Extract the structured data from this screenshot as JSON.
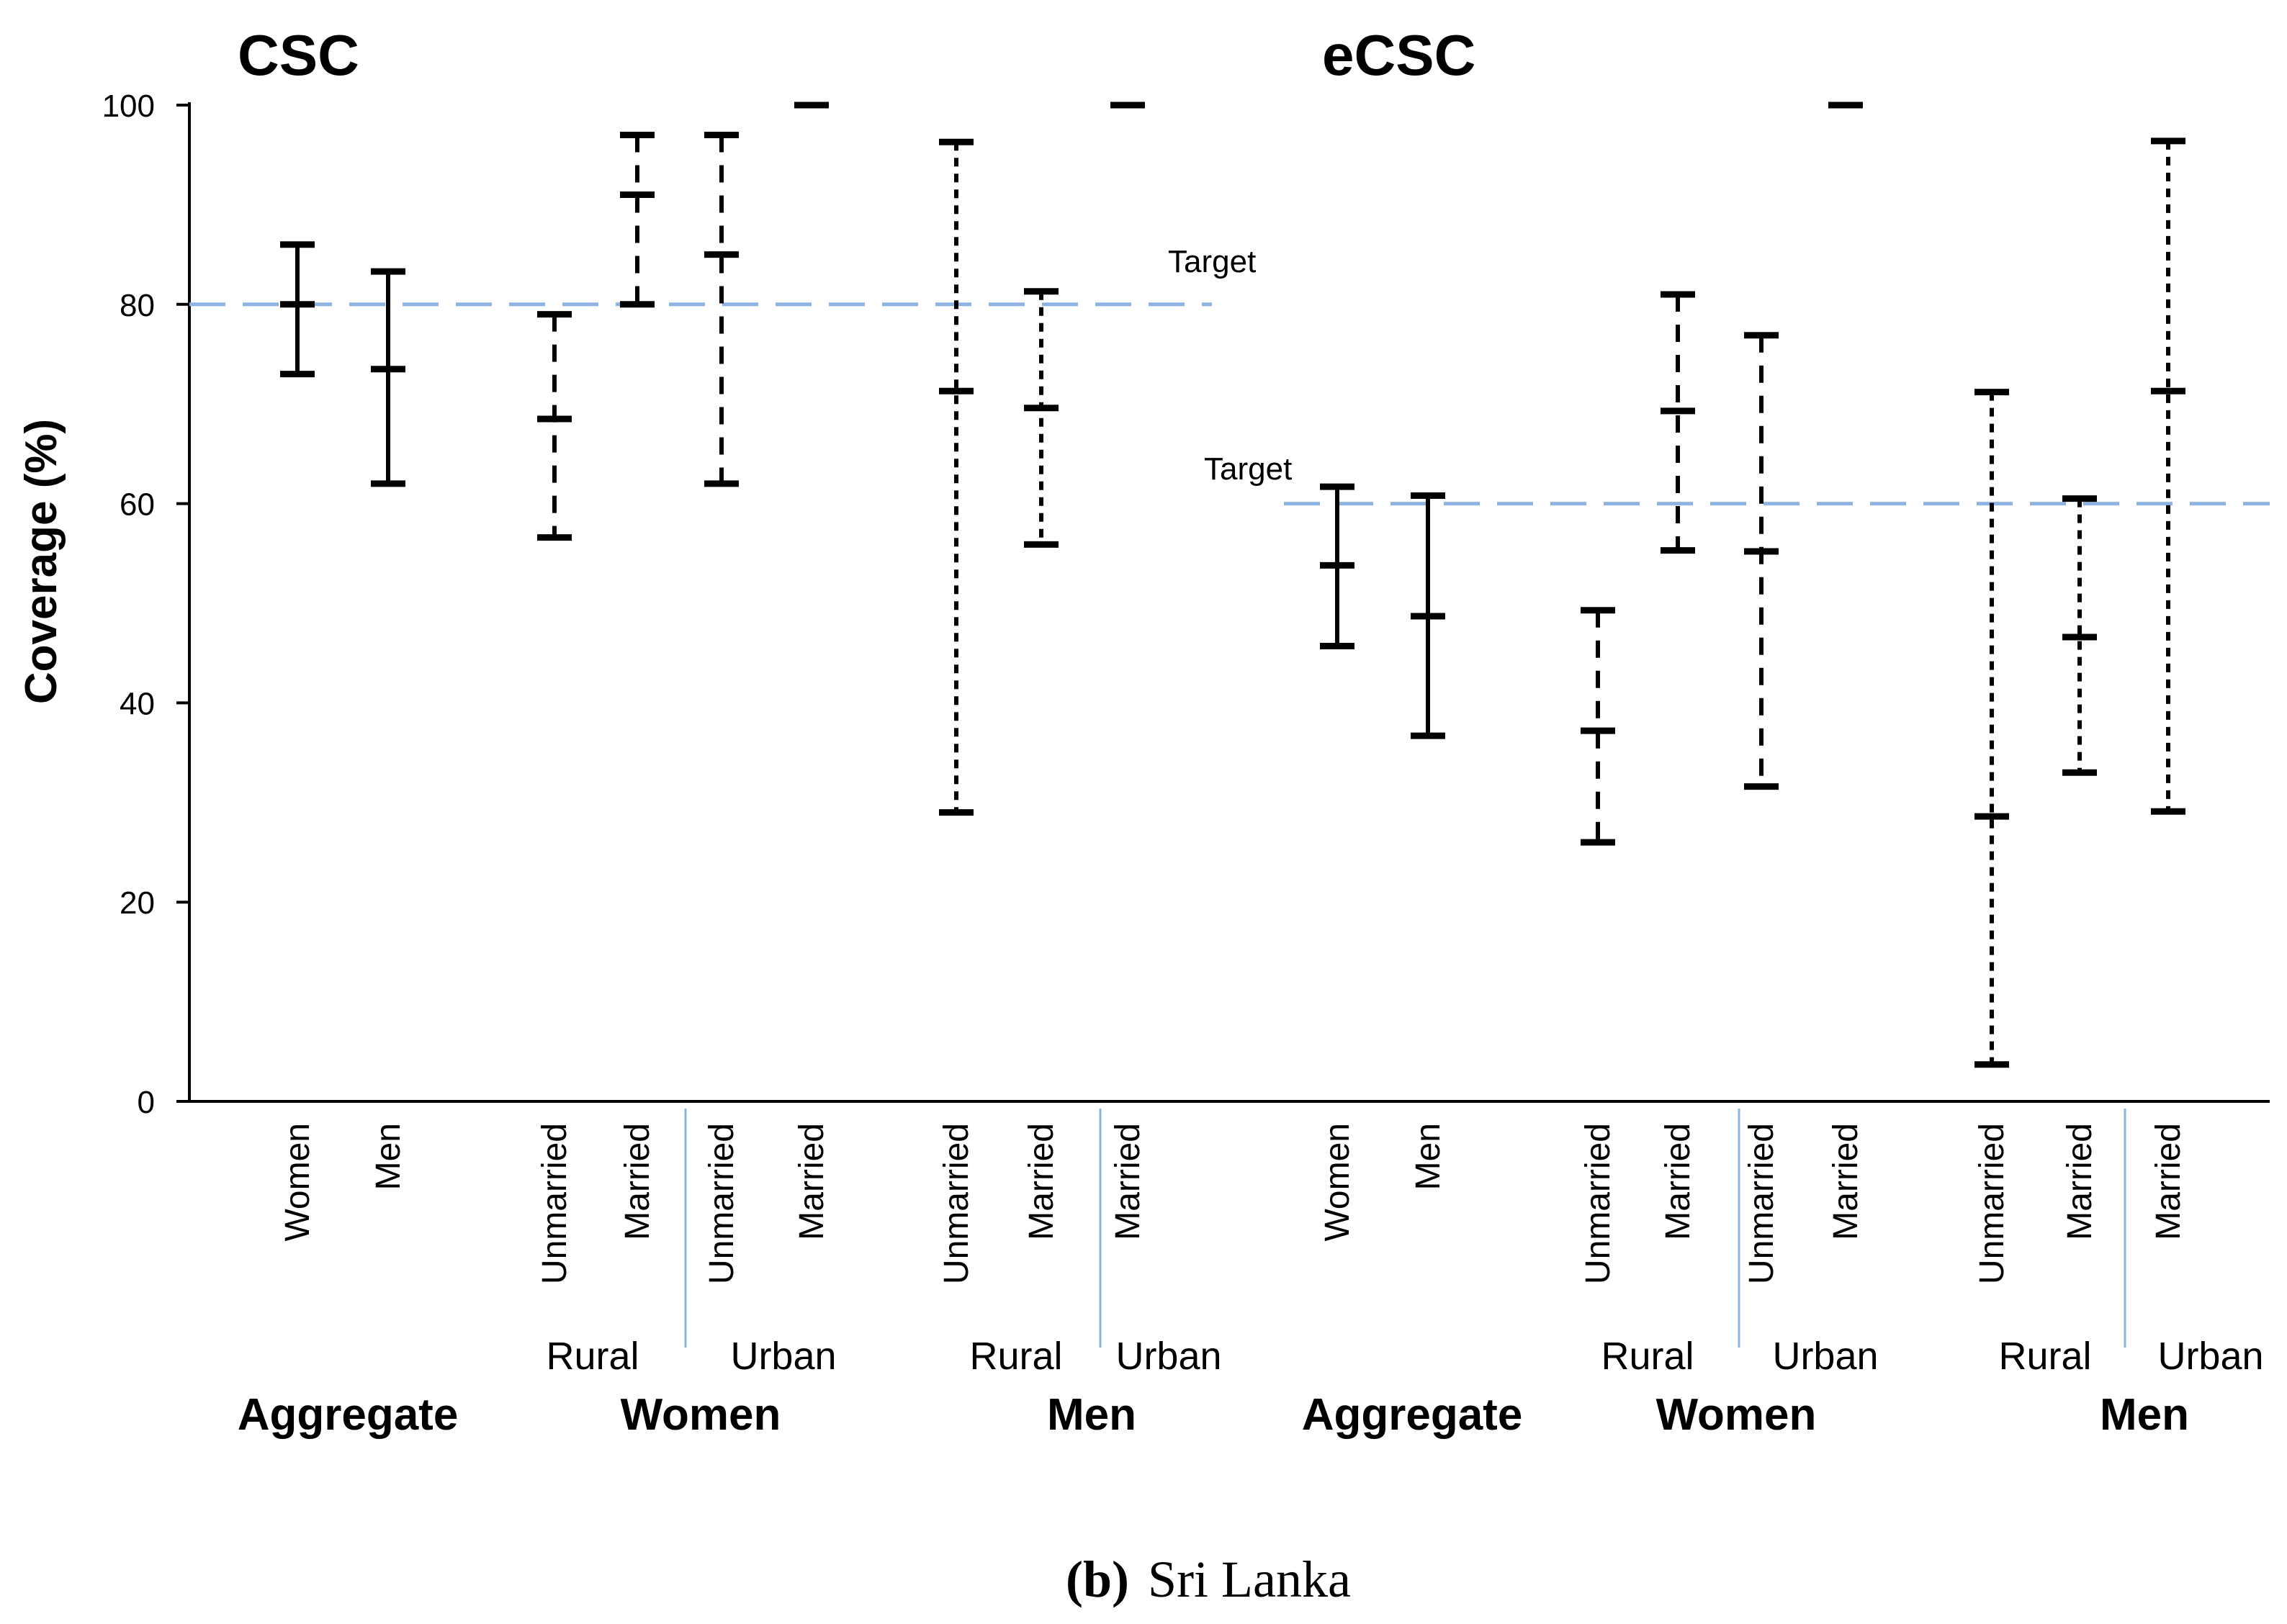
{
  "chart_data": {
    "type": "errorbar",
    "ylabel": "Coverage (%)",
    "ylim": [
      0,
      100
    ],
    "yticks": [
      "0",
      "20",
      "40",
      "60",
      "80",
      "100"
    ],
    "caption_label": "(b)",
    "caption_text": "Sri Lanka",
    "colors": {
      "axis": "#000000",
      "target": "#8db3e2",
      "separator": "#8db3e2",
      "bar": "#000000"
    },
    "panels": [
      {
        "title": "CSC",
        "target": 80,
        "target_label": "Target",
        "group_labels": [
          "Aggregate",
          "Women",
          "Men"
        ],
        "area_labels": [
          "Rural",
          "Urban",
          "Rural",
          "Urban"
        ],
        "series": [
          {
            "name": "Aggregate Women",
            "label": "Women",
            "style": "solid",
            "estimate": 80,
            "lower": 73,
            "upper": 86
          },
          {
            "name": "Aggregate Men",
            "label": "Men",
            "style": "solid",
            "estimate": 73.5,
            "lower": 62,
            "upper": 83.3
          },
          {
            "name": "Women Rural Unmarried",
            "label": "Unmarried",
            "style": "dashed",
            "estimate": 68.5,
            "lower": 56.6,
            "upper": 79
          },
          {
            "name": "Women Rural Married",
            "label": "Married",
            "style": "dashed",
            "estimate": 91,
            "lower": 80,
            "upper": 97
          },
          {
            "name": "Women Urban Unmarried",
            "label": "Unmarried",
            "style": "dashed",
            "estimate": 85,
            "lower": 62,
            "upper": 97
          },
          {
            "name": "Women Urban Married",
            "label": "Married",
            "style": "dashed",
            "estimate": 100,
            "lower": 100,
            "upper": 100
          },
          {
            "name": "Men Rural Unmarried",
            "label": "Unmarried",
            "style": "dotted",
            "estimate": 71.3,
            "lower": 29,
            "upper": 96.3
          },
          {
            "name": "Men Rural Married",
            "label": "Married",
            "style": "dotted",
            "estimate": 69.6,
            "lower": 55.9,
            "upper": 81.3
          },
          {
            "name": "Men Urban Married",
            "label": "Married",
            "style": "dotted",
            "estimate": 100,
            "lower": 100,
            "upper": 100
          }
        ]
      },
      {
        "title": "eCSC",
        "target": 60,
        "target_label": "Target",
        "group_labels": [
          "Aggregate",
          "Women",
          "Men"
        ],
        "area_labels": [
          "Rural",
          "Urban",
          "Rural",
          "Urban"
        ],
        "series": [
          {
            "name": "Aggregate Women",
            "label": "Women",
            "style": "solid",
            "estimate": 53.8,
            "lower": 45.7,
            "upper": 61.7
          },
          {
            "name": "Aggregate Men",
            "label": "Men",
            "style": "solid",
            "estimate": 48.7,
            "lower": 36.7,
            "upper": 60.8
          },
          {
            "name": "Women Rural Unmarried",
            "label": "Unmarried",
            "style": "dashed",
            "estimate": 37.2,
            "lower": 26,
            "upper": 49.3
          },
          {
            "name": "Women Rural Married",
            "label": "Married",
            "style": "dashed",
            "estimate": 69.3,
            "lower": 55.3,
            "upper": 81
          },
          {
            "name": "Women Urban Unmarried",
            "label": "Unmarried",
            "style": "dashed",
            "estimate": 55.2,
            "lower": 31.6,
            "upper": 76.9
          },
          {
            "name": "Women Urban Married",
            "label": "Married",
            "style": "dashed",
            "estimate": 100,
            "lower": 100,
            "upper": 100
          },
          {
            "name": "Men Rural Unmarried",
            "label": "Unmarried",
            "style": "dotted",
            "estimate": 28.6,
            "lower": 3.7,
            "upper": 71.2
          },
          {
            "name": "Men Rural Married",
            "label": "Married",
            "style": "dotted",
            "estimate": 46.6,
            "lower": 33,
            "upper": 60.5
          },
          {
            "name": "Men Urban Married",
            "label": "Married",
            "style": "dotted",
            "estimate": 71.3,
            "lower": 29.1,
            "upper": 96.4
          }
        ]
      }
    ]
  }
}
